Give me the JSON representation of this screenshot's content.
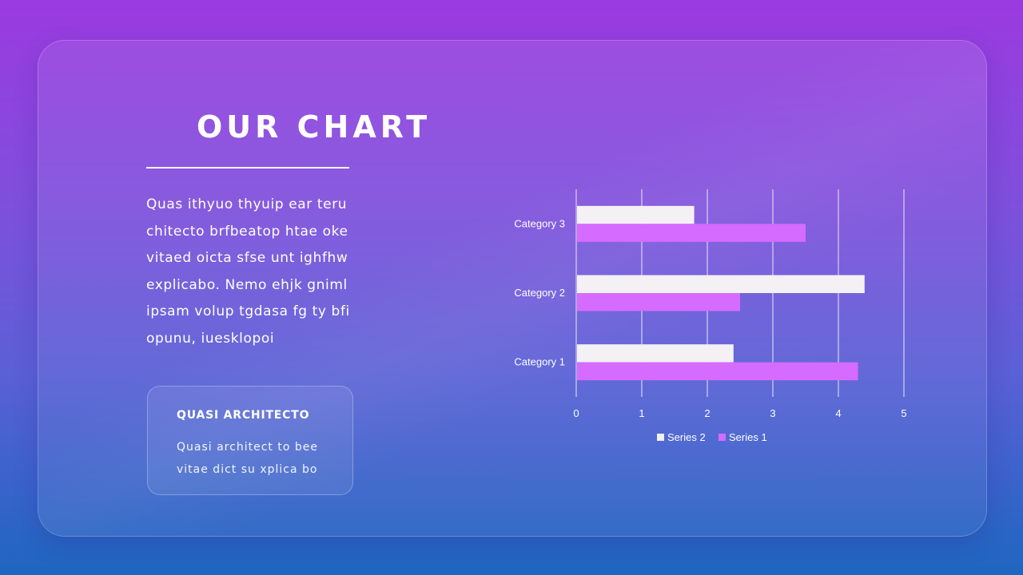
{
  "slide": {
    "title": "OUR CHART",
    "body": "Quas ithyuo thyuip ear teru chitecto brfbeatop htae oke vitaed oicta sfse unt ighfhw explicabo. Nemo ehjk gniml ipsam volup tgdasa fg ty bfi opunu, iuesklopoi",
    "box_heading": "QUASI ARCHITECTO",
    "box_text": "Quasi architect to bee vitae dict su xplica bo"
  },
  "colors": {
    "series1": "#d66bff",
    "series2": "#f3f1f3",
    "gridline": "#ffffff"
  },
  "chart_data": {
    "type": "bar",
    "orientation": "horizontal",
    "categories": [
      "Category 1",
      "Category 2",
      "Category 3"
    ],
    "series": [
      {
        "name": "Series 1",
        "values": [
          4.3,
          2.5,
          3.5
        ]
      },
      {
        "name": "Series 2",
        "values": [
          2.4,
          4.4,
          1.8
        ]
      }
    ],
    "xlim": [
      0,
      5
    ],
    "xticks": [
      "0",
      "1",
      "2",
      "3",
      "4",
      "5"
    ],
    "legend": [
      "Series 2",
      "Series 1"
    ],
    "legend_position": "bottom",
    "grid": true
  }
}
